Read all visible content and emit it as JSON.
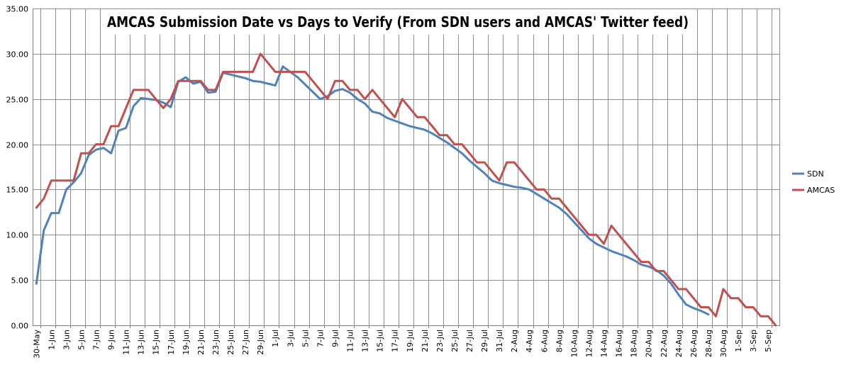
{
  "chart_data": {
    "type": "line",
    "title": "AMCAS Submission Date vs Days to Verify (From SDN users and AMCAS' Twitter feed)",
    "xlabel": "",
    "ylabel": "",
    "ylim": [
      0,
      35
    ],
    "yticks": [
      "0.00",
      "5.00",
      "10.00",
      "15.00",
      "20.00",
      "25.00",
      "30.00",
      "35.00"
    ],
    "x_range": [
      "30-May",
      "6-Sep"
    ],
    "xtick_labels": [
      "30-May",
      "1-Jun",
      "3-Jun",
      "5-Jun",
      "7-Jun",
      "9-Jun",
      "11-Jun",
      "13-Jun",
      "15-Jun",
      "17-Jun",
      "19-Jun",
      "21-Jun",
      "23-Jun",
      "25-Jun",
      "27-Jun",
      "29-Jun",
      "1-Jul",
      "3-Jul",
      "5-Jul",
      "7-Jul",
      "9-Jul",
      "11-Jul",
      "13-Jul",
      "15-Jul",
      "17-Jul",
      "19-Jul",
      "21-Jul",
      "23-Jul",
      "25-Jul",
      "27-Jul",
      "29-Jul",
      "31-Jul",
      "2-Aug",
      "4-Aug",
      "6-Aug",
      "8-Aug",
      "10-Aug",
      "12-Aug",
      "14-Aug",
      "16-Aug",
      "18-Aug",
      "20-Aug",
      "22-Aug",
      "24-Aug",
      "26-Aug",
      "28-Aug",
      "30-Aug",
      "1-Sep",
      "3-Sep",
      "5-Sep"
    ],
    "grid": true,
    "legend_position": "right",
    "series": [
      {
        "name": "SDN",
        "color": "#4f81bd",
        "points": [
          [
            "30-May",
            4.6
          ],
          [
            "31-May",
            10.5
          ],
          [
            "1-Jun",
            12.4
          ],
          [
            "2-Jun",
            12.4
          ],
          [
            "3-Jun",
            15.0
          ],
          [
            "4-Jun",
            15.8
          ],
          [
            "5-Jun",
            16.8
          ],
          [
            "6-Jun",
            18.8
          ],
          [
            "7-Jun",
            19.4
          ],
          [
            "8-Jun",
            19.6
          ],
          [
            "9-Jun",
            19.0
          ],
          [
            "10-Jun",
            21.5
          ],
          [
            "11-Jun",
            21.8
          ],
          [
            "12-Jun",
            24.2
          ],
          [
            "13-Jun",
            25.1
          ],
          [
            "14-Jun",
            25.0
          ],
          [
            "15-Jun",
            24.9
          ],
          [
            "16-Jun",
            24.6
          ],
          [
            "17-Jun",
            24.1
          ],
          [
            "18-Jun",
            26.9
          ],
          [
            "19-Jun",
            27.4
          ],
          [
            "20-Jun",
            26.7
          ],
          [
            "21-Jun",
            26.9
          ],
          [
            "22-Jun",
            25.7
          ],
          [
            "23-Jun",
            25.8
          ],
          [
            "24-Jun",
            27.9
          ],
          [
            "25-Jun",
            27.7
          ],
          [
            "26-Jun",
            27.5
          ],
          [
            "27-Jun",
            27.3
          ],
          [
            "28-Jun",
            27.0
          ],
          [
            "29-Jun",
            26.9
          ],
          [
            "30-Jun",
            26.7
          ],
          [
            "1-Jul",
            26.5
          ],
          [
            "2-Jul",
            28.6
          ],
          [
            "3-Jul",
            28.0
          ],
          [
            "4-Jul",
            27.4
          ],
          [
            "5-Jul",
            26.6
          ],
          [
            "6-Jul",
            25.8
          ],
          [
            "7-Jul",
            25.0
          ],
          [
            "8-Jul",
            25.3
          ],
          [
            "9-Jul",
            25.9
          ],
          [
            "10-Jul",
            26.1
          ],
          [
            "11-Jul",
            25.7
          ],
          [
            "12-Jul",
            25.0
          ],
          [
            "13-Jul",
            24.5
          ],
          [
            "14-Jul",
            23.6
          ],
          [
            "15-Jul",
            23.4
          ],
          [
            "16-Jul",
            22.9
          ],
          [
            "17-Jul",
            22.6
          ],
          [
            "18-Jul",
            22.3
          ],
          [
            "19-Jul",
            22.0
          ],
          [
            "20-Jul",
            21.8
          ],
          [
            "21-Jul",
            21.6
          ],
          [
            "22-Jul",
            21.2
          ],
          [
            "23-Jul",
            20.7
          ],
          [
            "24-Jul",
            20.2
          ],
          [
            "25-Jul",
            19.6
          ],
          [
            "26-Jul",
            19.0
          ],
          [
            "27-Jul",
            18.2
          ],
          [
            "28-Jul",
            17.5
          ],
          [
            "29-Jul",
            16.8
          ],
          [
            "30-Jul",
            16.0
          ],
          [
            "31-Jul",
            15.7
          ],
          [
            "1-Aug",
            15.5
          ],
          [
            "2-Aug",
            15.3
          ],
          [
            "3-Aug",
            15.2
          ],
          [
            "4-Aug",
            15.0
          ],
          [
            "5-Aug",
            14.5
          ],
          [
            "6-Aug",
            14.0
          ],
          [
            "7-Aug",
            13.5
          ],
          [
            "8-Aug",
            13.0
          ],
          [
            "9-Aug",
            12.3
          ],
          [
            "10-Aug",
            11.4
          ],
          [
            "11-Aug",
            10.5
          ],
          [
            "12-Aug",
            9.6
          ],
          [
            "13-Aug",
            9.0
          ],
          [
            "14-Aug",
            8.6
          ],
          [
            "15-Aug",
            8.2
          ],
          [
            "16-Aug",
            7.9
          ],
          [
            "17-Aug",
            7.6
          ],
          [
            "18-Aug",
            7.2
          ],
          [
            "19-Aug",
            6.7
          ],
          [
            "20-Aug",
            6.5
          ],
          [
            "21-Aug",
            6.1
          ],
          [
            "22-Aug",
            5.5
          ],
          [
            "23-Aug",
            4.6
          ],
          [
            "24-Aug",
            3.4
          ],
          [
            "25-Aug",
            2.3
          ],
          [
            "26-Aug",
            1.9
          ],
          [
            "27-Aug",
            1.6
          ],
          [
            "28-Aug",
            1.2
          ]
        ]
      },
      {
        "name": "AMCAS",
        "color": "#c0504d",
        "points": [
          [
            "30-May",
            13
          ],
          [
            "31-May",
            14
          ],
          [
            "1-Jun",
            16
          ],
          [
            "2-Jun",
            16
          ],
          [
            "3-Jun",
            16
          ],
          [
            "4-Jun",
            16
          ],
          [
            "5-Jun",
            19
          ],
          [
            "6-Jun",
            19
          ],
          [
            "7-Jun",
            20
          ],
          [
            "8-Jun",
            20
          ],
          [
            "9-Jun",
            22
          ],
          [
            "10-Jun",
            22
          ],
          [
            "11-Jun",
            24
          ],
          [
            "12-Jun",
            26
          ],
          [
            "13-Jun",
            26
          ],
          [
            "14-Jun",
            26
          ],
          [
            "15-Jun",
            25
          ],
          [
            "16-Jun",
            24
          ],
          [
            "17-Jun",
            25
          ],
          [
            "18-Jun",
            27
          ],
          [
            "19-Jun",
            27
          ],
          [
            "20-Jun",
            27
          ],
          [
            "21-Jun",
            27
          ],
          [
            "22-Jun",
            26
          ],
          [
            "23-Jun",
            26
          ],
          [
            "24-Jun",
            28
          ],
          [
            "25-Jun",
            28
          ],
          [
            "26-Jun",
            28
          ],
          [
            "27-Jun",
            28
          ],
          [
            "28-Jun",
            28
          ],
          [
            "29-Jun",
            30
          ],
          [
            "30-Jun",
            29
          ],
          [
            "1-Jul",
            28
          ],
          [
            "2-Jul",
            28
          ],
          [
            "3-Jul",
            28
          ],
          [
            "4-Jul",
            28
          ],
          [
            "5-Jul",
            28
          ],
          [
            "6-Jul",
            27
          ],
          [
            "7-Jul",
            26
          ],
          [
            "8-Jul",
            25
          ],
          [
            "9-Jul",
            27
          ],
          [
            "10-Jul",
            27
          ],
          [
            "11-Jul",
            26
          ],
          [
            "12-Jul",
            26
          ],
          [
            "13-Jul",
            25
          ],
          [
            "14-Jul",
            26
          ],
          [
            "15-Jul",
            25
          ],
          [
            "16-Jul",
            24
          ],
          [
            "17-Jul",
            23
          ],
          [
            "18-Jul",
            25
          ],
          [
            "19-Jul",
            24
          ],
          [
            "20-Jul",
            23
          ],
          [
            "21-Jul",
            23
          ],
          [
            "22-Jul",
            22
          ],
          [
            "23-Jul",
            21
          ],
          [
            "24-Jul",
            21
          ],
          [
            "25-Jul",
            20
          ],
          [
            "26-Jul",
            20
          ],
          [
            "27-Jul",
            19
          ],
          [
            "28-Jul",
            18
          ],
          [
            "29-Jul",
            18
          ],
          [
            "30-Jul",
            17
          ],
          [
            "31-Jul",
            16
          ],
          [
            "1-Aug",
            18
          ],
          [
            "2-Aug",
            18
          ],
          [
            "3-Aug",
            17
          ],
          [
            "4-Aug",
            16
          ],
          [
            "5-Aug",
            15
          ],
          [
            "6-Aug",
            15
          ],
          [
            "7-Aug",
            14
          ],
          [
            "8-Aug",
            14
          ],
          [
            "9-Aug",
            13
          ],
          [
            "10-Aug",
            12
          ],
          [
            "11-Aug",
            11
          ],
          [
            "12-Aug",
            10
          ],
          [
            "13-Aug",
            10
          ],
          [
            "14-Aug",
            9
          ],
          [
            "15-Aug",
            11
          ],
          [
            "16-Aug",
            10
          ],
          [
            "17-Aug",
            9
          ],
          [
            "18-Aug",
            8
          ],
          [
            "19-Aug",
            7
          ],
          [
            "20-Aug",
            7
          ],
          [
            "21-Aug",
            6
          ],
          [
            "22-Aug",
            6
          ],
          [
            "23-Aug",
            5
          ],
          [
            "24-Aug",
            4
          ],
          [
            "25-Aug",
            4
          ],
          [
            "26-Aug",
            3
          ],
          [
            "27-Aug",
            2
          ],
          [
            "28-Aug",
            2
          ],
          [
            "29-Aug",
            1
          ],
          [
            "30-Aug",
            4
          ],
          [
            "31-Aug",
            3
          ],
          [
            "1-Sep",
            3
          ],
          [
            "2-Sep",
            2
          ],
          [
            "3-Sep",
            2
          ],
          [
            "4-Sep",
            1
          ],
          [
            "5-Sep",
            1
          ],
          [
            "6-Sep",
            0
          ]
        ]
      }
    ]
  }
}
